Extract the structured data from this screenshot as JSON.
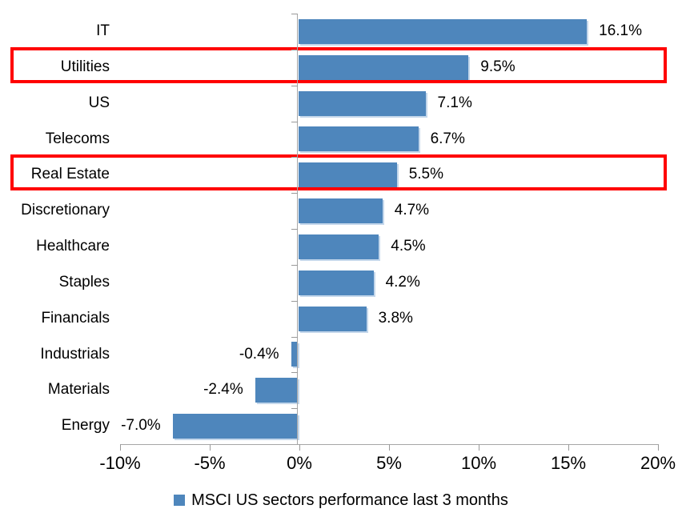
{
  "chart_data": {
    "type": "bar",
    "orientation": "horizontal",
    "title": "",
    "categories": [
      "IT",
      "Utilities",
      "US",
      "Telecoms",
      "Real Estate",
      "Discretionary",
      "Healthcare",
      "Staples",
      "Financials",
      "Industrials",
      "Materials",
      "Energy"
    ],
    "values": [
      16.1,
      9.5,
      7.1,
      6.7,
      5.5,
      4.7,
      4.5,
      4.2,
      3.8,
      -0.4,
      -2.4,
      -7.0
    ],
    "value_labels": [
      "16.1%",
      "9.5%",
      "7.1%",
      "6.7%",
      "5.5%",
      "4.7%",
      "4.5%",
      "4.2%",
      "3.8%",
      "-0.4%",
      "-2.4%",
      "-7.0%"
    ],
    "highlighted_categories": [
      "Utilities",
      "Real Estate"
    ],
    "x_tick_labels": [
      "-10%",
      "-5%",
      "0%",
      "5%",
      "10%",
      "15%",
      "20%"
    ],
    "x_tick_values": [
      -10,
      -5,
      0,
      5,
      10,
      15,
      20
    ],
    "xlim": [
      -10,
      20
    ],
    "grid": false,
    "legend_position": "bottom",
    "legend_label": "MSCI US sectors performance last 3 months",
    "bar_color": "#4e86bc",
    "highlight_box_color": "#ff0000",
    "axis_line_color": "#a6a6a6",
    "text_color": "#000000"
  }
}
